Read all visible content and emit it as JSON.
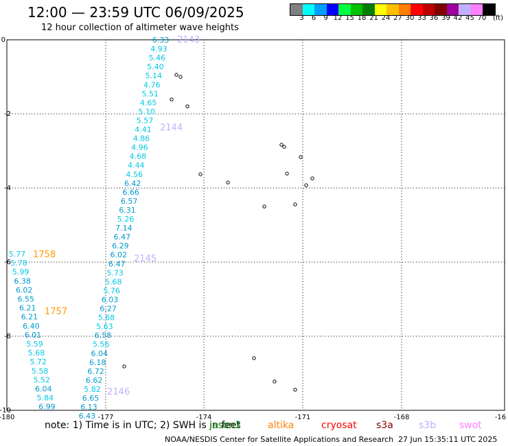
{
  "title": "12:00 — 23:59 UTC 06/09/2025",
  "subtitle": "12 hour collection of altimeter wave heights",
  "colorbar": {
    "colors": [
      "#808080",
      "#00ffff",
      "#00a0ff",
      "#0000ff",
      "#00ff40",
      "#00c000",
      "#008000",
      "#ffff00",
      "#ffc000",
      "#ff8000",
      "#ff0000",
      "#c00000",
      "#800000",
      "#a000a0",
      "#c0b0ff",
      "#ff80ff",
      "#000000"
    ],
    "labels": [
      "3",
      "6",
      "9",
      "12",
      "15",
      "18",
      "21",
      "24",
      "27",
      "30",
      "33",
      "36",
      "39",
      "42",
      "45",
      "70",
      "(ft)"
    ]
  },
  "axes": {
    "x_ticks": [
      "-180",
      "-177",
      "-174",
      "-171",
      "-168",
      "-16"
    ],
    "y_ticks": [
      "0",
      "-2",
      "-4",
      "-6",
      "-8",
      "-10"
    ]
  },
  "passes": [
    {
      "id": "2143",
      "color": "#c0b0ff"
    },
    {
      "id": "2144",
      "color": "#c0b0ff"
    },
    {
      "id": "2145",
      "color": "#c0b0ff"
    },
    {
      "id": "2146",
      "color": "#c0b0ff"
    },
    {
      "id": "1758",
      "color": "#ff9900"
    },
    {
      "id": "1757",
      "color": "#ff9900"
    }
  ],
  "track_a": [
    "6.33",
    "4.93",
    "5.46",
    "5.40",
    "5.14",
    "4.76",
    "5.51",
    "4.65",
    "5.10",
    "5.57",
    "4.41",
    "4.86",
    "4.96",
    "4.68",
    "4.44",
    "4.56",
    "6.42",
    "6.66",
    "6.57",
    "6.31",
    "5.26",
    "7.14",
    "6.47",
    "6.29",
    "6.02",
    "6.47",
    "5.73",
    "5.68",
    "5.76",
    "6.03",
    "6.27",
    "5.68",
    "5.63",
    "6.58",
    "5.56",
    "6.04",
    "6.18",
    "6.72",
    "6.62",
    "5.82",
    "6.65",
    "6.13",
    "6.43"
  ],
  "track_b": [
    "5.77",
    "5.78",
    "5.99",
    "6.38",
    "6.02",
    "6.55",
    "6.21",
    "6.21",
    "6.40",
    "6.01",
    "5.59",
    "5.68",
    "5.72",
    "5.58",
    "5.52",
    "6.04",
    "5.84",
    "6.99"
  ],
  "note": "note:  1) Time is in UTC; 2) SWH is in feet",
  "satellites": [
    {
      "name": "jason3",
      "color": "#008000"
    },
    {
      "name": "altika",
      "color": "#ff8000"
    },
    {
      "name": "cryosat",
      "color": "#ff0000"
    },
    {
      "name": "s3a",
      "color": "#800000"
    },
    {
      "name": "s3b",
      "color": "#c0b0ff"
    },
    {
      "name": "swot",
      "color": "#ff80ff"
    }
  ],
  "credit": "NOAA/NESDIS Center for Satellite Applications and Research",
  "timestamp": "27 Jun 15:35:11 UTC 2025"
}
